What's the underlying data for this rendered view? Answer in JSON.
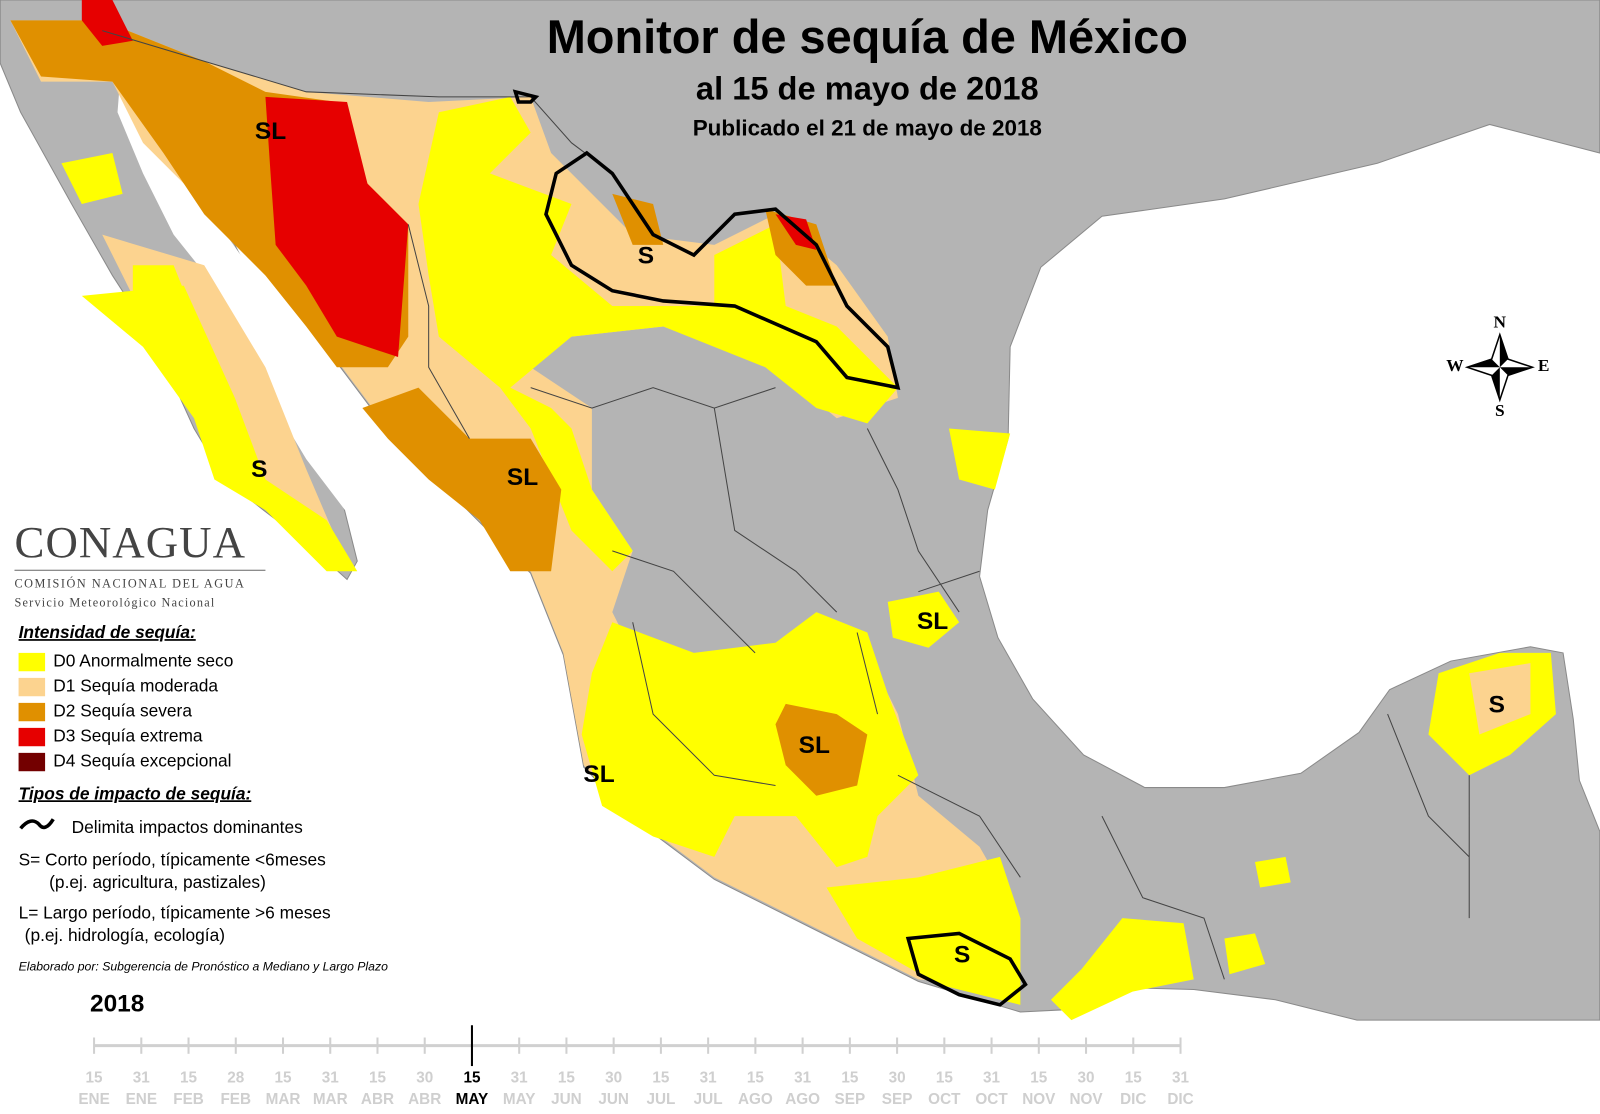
{
  "header": {
    "title": "Monitor de sequía de México",
    "subtitle": "al 15 de mayo de 2018",
    "published": "Publicado el 21 de mayo de 2018"
  },
  "logo": {
    "name": "CONAGUA",
    "agency": "COMISIÓN NACIONAL DEL AGUA",
    "service": "Servicio Meteorológico Nacional"
  },
  "legend": {
    "intensity_title": "Intensidad de sequía:",
    "intensity": [
      {
        "label": "D0 Anormalmente seco",
        "color": "#ffff00"
      },
      {
        "label": "D1 Sequía moderada",
        "color": "#fcd38f"
      },
      {
        "label": "D2 Sequía severa",
        "color": "#e09000"
      },
      {
        "label": "D3 Sequía extrema",
        "color": "#e60000"
      },
      {
        "label": "D4 Sequía excepcional",
        "color": "#730000"
      }
    ],
    "impact_title": "Tipos de impacto de sequía:",
    "impact_line": "Delimita impactos dominantes",
    "impact_types": [
      {
        "text": "S= Corto período, típicamente <6meses",
        "detail": "(p.ej. agricultura, pastizales)"
      },
      {
        "text": "L= Largo período, típicamente >6 meses",
        "detail": "(p.ej. hidrología, ecología)"
      }
    ],
    "credit": "Elaborado por: Subgerencia de Pronóstico a Mediano y Largo Plazo"
  },
  "map": {
    "labels": [
      "SL",
      "S",
      "S",
      "SL",
      "SL",
      "SL",
      "SL",
      "S",
      "S"
    ]
  },
  "compass": {
    "north": "N",
    "east": "E",
    "south": "S",
    "west": "W"
  },
  "timeline": {
    "year": "2018",
    "ticks": [
      {
        "day": 15,
        "month": "ENE"
      },
      {
        "day": 31,
        "month": "ENE"
      },
      {
        "day": 15,
        "month": "FEB"
      },
      {
        "day": 28,
        "month": "FEB"
      },
      {
        "day": 15,
        "month": "MAR"
      },
      {
        "day": 31,
        "month": "MAR"
      },
      {
        "day": 15,
        "month": "ABR"
      },
      {
        "day": 30,
        "month": "ABR"
      },
      {
        "day": 15,
        "month": "MAY"
      },
      {
        "day": 31,
        "month": "MAY"
      },
      {
        "day": 15,
        "month": "JUN"
      },
      {
        "day": 30,
        "month": "JUN"
      },
      {
        "day": 15,
        "month": "JUL"
      },
      {
        "day": 31,
        "month": "JUL"
      },
      {
        "day": 15,
        "month": "AGO"
      },
      {
        "day": 31,
        "month": "AGO"
      },
      {
        "day": 15,
        "month": "SEP"
      },
      {
        "day": 30,
        "month": "SEP"
      },
      {
        "day": 15,
        "month": "OCT"
      },
      {
        "day": 31,
        "month": "OCT"
      },
      {
        "day": 15,
        "month": "NOV"
      },
      {
        "day": 30,
        "month": "NOV"
      },
      {
        "day": 15,
        "month": "DIC"
      },
      {
        "day": 31,
        "month": "DIC"
      }
    ]
  }
}
